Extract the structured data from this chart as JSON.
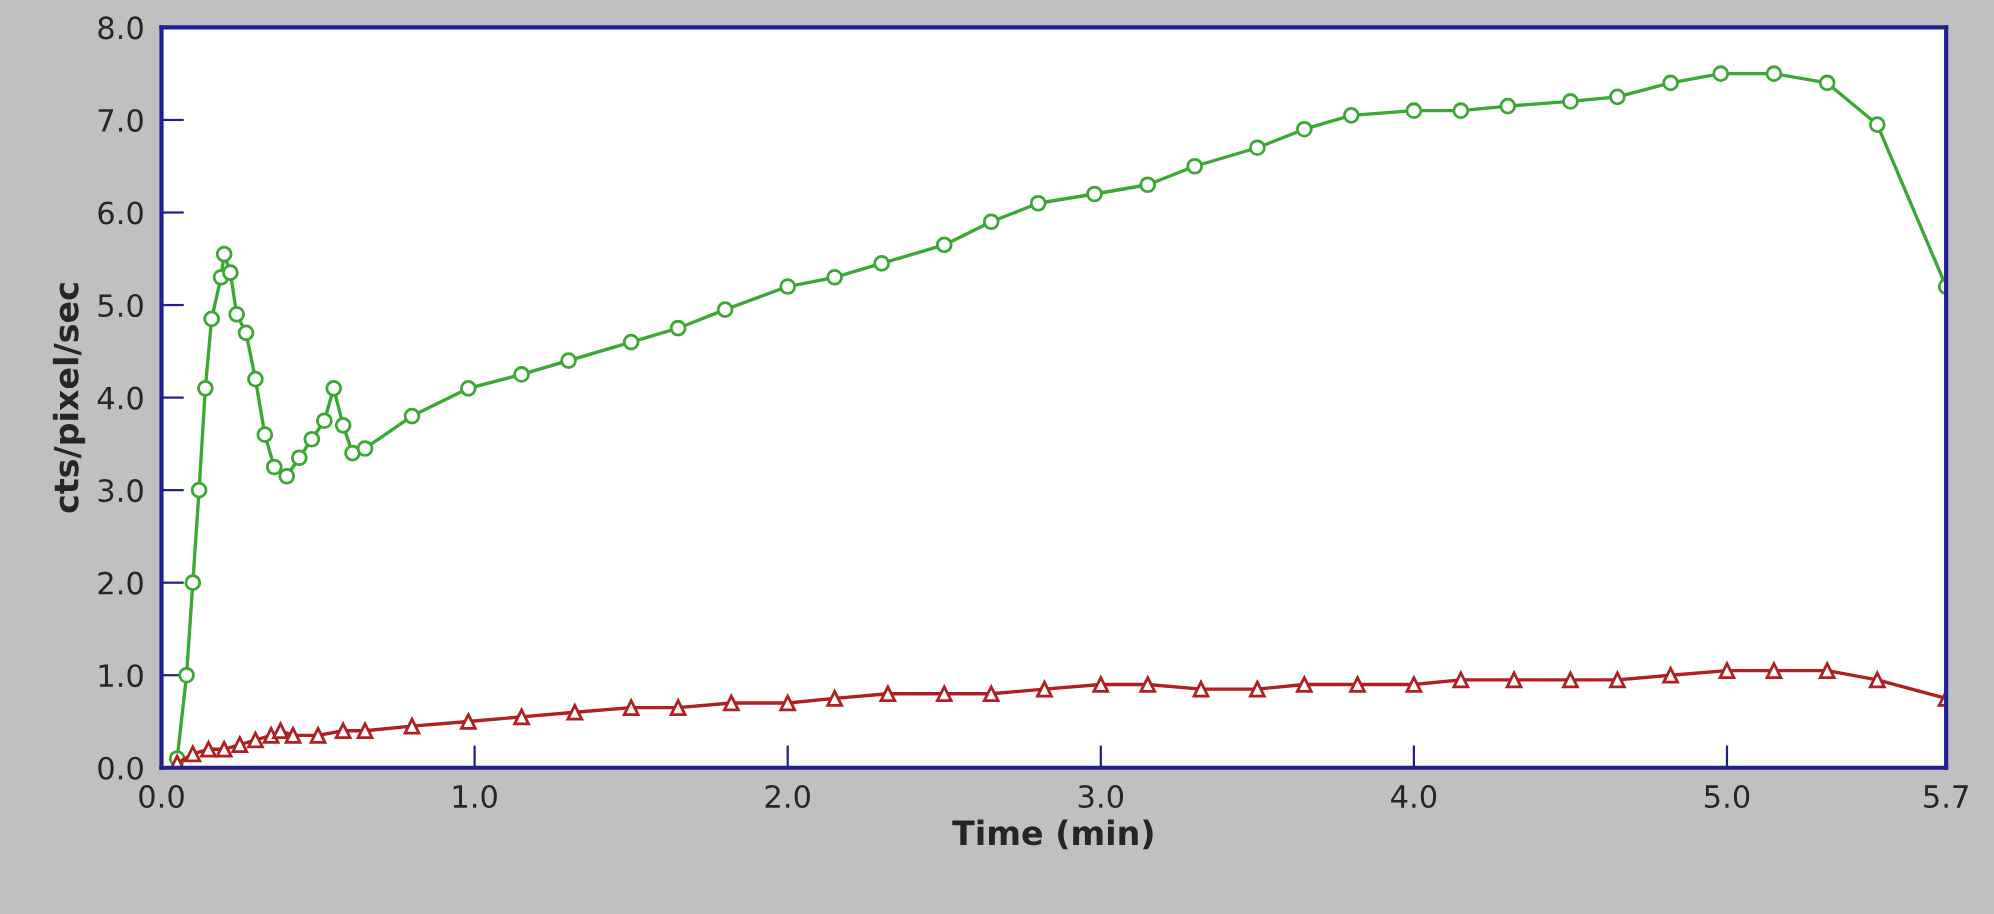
{
  "chart_data": {
    "type": "line",
    "xlabel": "Time (min)",
    "ylabel": "cts/pixel/sec",
    "xlim": [
      0,
      5.7
    ],
    "ylim": [
      0,
      8
    ],
    "xticks": [
      {
        "value": 0,
        "label": "0.0"
      },
      {
        "value": 1,
        "label": "1.0"
      },
      {
        "value": 2,
        "label": "2.0"
      },
      {
        "value": 3,
        "label": "3.0"
      },
      {
        "value": 4,
        "label": "4.0"
      },
      {
        "value": 5,
        "label": "5.0"
      },
      {
        "value": 5.7,
        "label": "5.7"
      }
    ],
    "yticks": [
      {
        "value": 0,
        "label": "0.0"
      },
      {
        "value": 1,
        "label": "1.0"
      },
      {
        "value": 2,
        "label": "2.0"
      },
      {
        "value": 3,
        "label": "3.0"
      },
      {
        "value": 4,
        "label": "4.0"
      },
      {
        "value": 5,
        "label": "5.0"
      },
      {
        "value": 6,
        "label": "6.0"
      },
      {
        "value": 7,
        "label": "7.0"
      },
      {
        "value": 8,
        "label": "8.0"
      }
    ],
    "grid": false,
    "line_style": "solid",
    "series": [
      {
        "color": "#3aa832",
        "marker": "circle",
        "x": [
          0.05,
          0.08,
          0.1,
          0.12,
          0.14,
          0.16,
          0.19,
          0.2,
          0.22,
          0.24,
          0.27,
          0.3,
          0.33,
          0.36,
          0.4,
          0.44,
          0.48,
          0.52,
          0.55,
          0.58,
          0.61,
          0.65,
          0.8,
          0.98,
          1.15,
          1.3,
          1.5,
          1.65,
          1.8,
          2.0,
          2.15,
          2.3,
          2.5,
          2.65,
          2.8,
          2.98,
          3.15,
          3.3,
          3.5,
          3.65,
          3.8,
          4.0,
          4.15,
          4.3,
          4.5,
          4.65,
          4.82,
          4.98,
          5.15,
          5.32,
          5.48,
          5.7
        ],
        "values": [
          0.1,
          1.0,
          2.0,
          3.0,
          4.1,
          4.85,
          5.3,
          5.55,
          5.35,
          4.9,
          4.7,
          4.2,
          3.6,
          3.25,
          3.15,
          3.35,
          3.55,
          3.75,
          4.1,
          3.7,
          3.4,
          3.45,
          3.8,
          4.1,
          4.25,
          4.4,
          4.6,
          4.75,
          4.95,
          5.2,
          5.3,
          5.45,
          5.65,
          5.9,
          6.1,
          6.2,
          6.3,
          6.5,
          6.7,
          6.9,
          7.05,
          7.1,
          7.1,
          7.15,
          7.2,
          7.25,
          7.4,
          7.5,
          7.5,
          7.4,
          6.95,
          5.2
        ]
      },
      {
        "color": "#b02020",
        "marker": "triangle",
        "x": [
          0.05,
          0.1,
          0.15,
          0.2,
          0.25,
          0.3,
          0.35,
          0.38,
          0.42,
          0.5,
          0.58,
          0.65,
          0.8,
          0.98,
          1.15,
          1.32,
          1.5,
          1.65,
          1.82,
          2.0,
          2.15,
          2.32,
          2.5,
          2.65,
          2.82,
          3.0,
          3.15,
          3.32,
          3.5,
          3.65,
          3.82,
          4.0,
          4.15,
          4.32,
          4.5,
          4.65,
          4.82,
          5.0,
          5.15,
          5.32,
          5.48,
          5.7
        ],
        "values": [
          0.05,
          0.15,
          0.2,
          0.2,
          0.25,
          0.3,
          0.35,
          0.4,
          0.35,
          0.35,
          0.4,
          0.4,
          0.45,
          0.5,
          0.55,
          0.6,
          0.65,
          0.65,
          0.7,
          0.7,
          0.75,
          0.8,
          0.8,
          0.8,
          0.85,
          0.9,
          0.9,
          0.85,
          0.85,
          0.9,
          0.9,
          0.9,
          0.95,
          0.95,
          0.95,
          0.95,
          1.0,
          1.05,
          1.05,
          1.05,
          0.95,
          0.75
        ]
      }
    ]
  }
}
